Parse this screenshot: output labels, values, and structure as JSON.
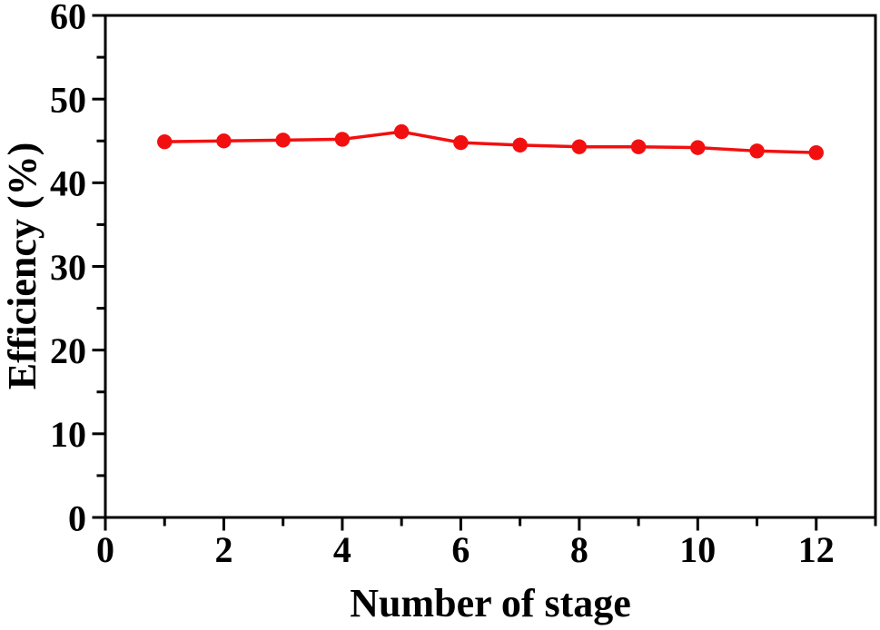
{
  "figure": {
    "background": "#ffffff"
  },
  "chart_data": {
    "type": "line",
    "title": "",
    "xlabel": "Number of stage",
    "ylabel": "Efficiency (%)",
    "x": [
      1,
      2,
      3,
      4,
      5,
      6,
      7,
      8,
      9,
      10,
      11,
      12
    ],
    "series": [
      {
        "name": "Efficiency",
        "values": [
          44.9,
          45.0,
          45.1,
          45.2,
          46.1,
          44.8,
          44.5,
          44.3,
          44.3,
          44.2,
          43.8,
          43.6
        ],
        "color": "#f20f0f",
        "marker": "circle"
      }
    ],
    "xlim": [
      0,
      13
    ],
    "ylim": [
      0,
      60
    ],
    "x_major_ticks": [
      0,
      2,
      4,
      6,
      8,
      10,
      12
    ],
    "x_minor_ticks": [
      1,
      3,
      5,
      7,
      9,
      11,
      13
    ],
    "y_major_ticks": [
      0,
      10,
      20,
      30,
      40,
      50,
      60
    ],
    "y_minor_ticks": [
      5,
      15,
      25,
      35,
      45,
      55
    ],
    "x_tick_labels": [
      "0",
      "2",
      "4",
      "6",
      "8",
      "10",
      "12"
    ],
    "y_tick_labels": [
      "0",
      "10",
      "20",
      "30",
      "40",
      "50",
      "60"
    ],
    "grid": false,
    "legend": "none",
    "axis_color": "#000000"
  }
}
